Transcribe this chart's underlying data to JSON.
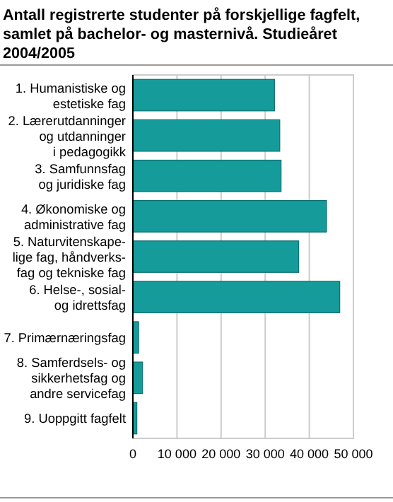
{
  "chart_data": {
    "type": "bar",
    "orientation": "horizontal",
    "title": "Antall registrerte studenter på forskjellige fagfelt,\nsamlet på bachelor- og masternivå. Studieåret\n2004/2005",
    "categories": [
      "1. Humanistiske og\nestetiske fag",
      "2. Lærerutdanninger\nog utdanninger\ni pedagogikk",
      "3. Samfunnsfag\nog juridiske fag",
      "4. Økonomiske og\nadministrative fag",
      "5. Naturvitenskape-\nlige fag, håndverks-\nfag og tekniske fag",
      "6. Helse-, sosial-\nog idrettsfag",
      "7. Primærnæringsfag",
      "8. Samferdsels- og\nsikkerhetsfag og\nandre servicefag",
      "9. Uoppgitt fagfelt"
    ],
    "values": [
      32100,
      33300,
      33600,
      43900,
      37600,
      46900,
      1300,
      2200,
      900
    ],
    "color": "#169b9b",
    "xlim": [
      0,
      50000
    ],
    "xticks": [
      {
        "value": 0,
        "label": "0"
      },
      {
        "value": 10000,
        "label": "10 000"
      },
      {
        "value": 20000,
        "label": "20 000"
      },
      {
        "value": 30000,
        "label": "30 000"
      },
      {
        "value": 40000,
        "label": "40 000"
      },
      {
        "value": 50000,
        "label": "50 000"
      }
    ],
    "grid": "x"
  }
}
